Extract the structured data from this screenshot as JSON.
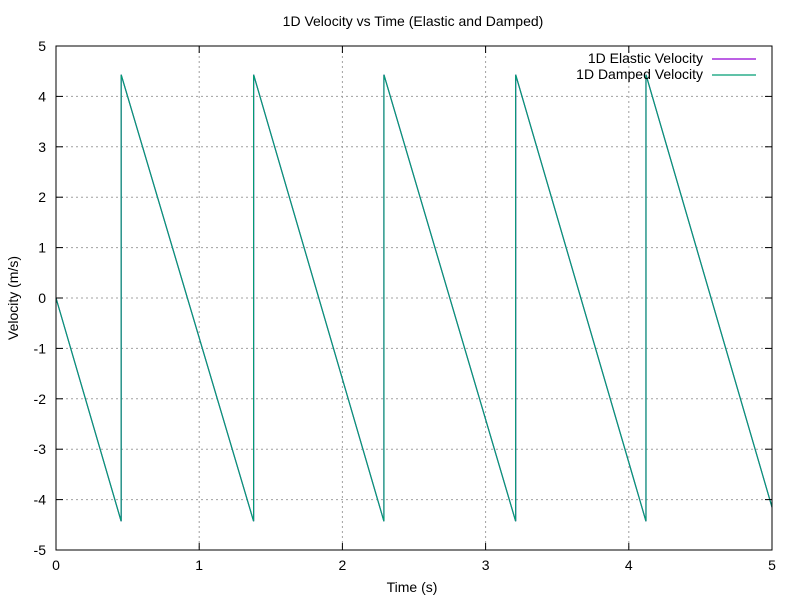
{
  "chart_data": {
    "type": "line",
    "title": "1D Velocity vs Time (Elastic and Damped)",
    "xlabel": "Time (s)",
    "ylabel": "Velocity (m/s)",
    "xlim": [
      0,
      5
    ],
    "ylim": [
      -5,
      5
    ],
    "x_ticks": [
      "0",
      "1",
      "2",
      "3",
      "4",
      "5"
    ],
    "y_ticks": [
      "5",
      "4",
      "3",
      "2",
      "1",
      "0",
      "-1",
      "-2",
      "-3",
      "-4",
      "-5"
    ],
    "grid": true,
    "legend_position": "top-right",
    "series": [
      {
        "name": "1D Elastic Velocity",
        "color": "#9400d3",
        "x": [
          0,
          0.455,
          0.455,
          1.38,
          1.38,
          2.29,
          2.29,
          3.21,
          3.21,
          4.12,
          4.12,
          5.0
        ],
        "y": [
          0,
          -4.43,
          4.43,
          -4.43,
          4.43,
          -4.43,
          4.43,
          -4.43,
          4.43,
          -4.43,
          4.43,
          -4.15
        ]
      },
      {
        "name": "1D Damped Velocity",
        "color": "#009e73",
        "x": [
          0,
          0.455,
          0.455,
          1.38,
          1.38,
          2.29,
          2.29,
          3.21,
          3.21,
          4.12,
          4.12,
          5.0
        ],
        "y": [
          0,
          -4.43,
          4.43,
          -4.43,
          4.43,
          -4.43,
          4.43,
          -4.43,
          4.43,
          -4.43,
          4.43,
          -4.15
        ]
      }
    ]
  }
}
